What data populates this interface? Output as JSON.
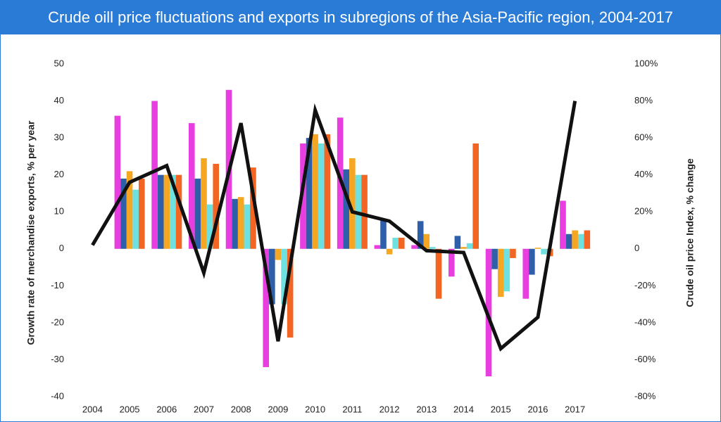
{
  "chart_data": {
    "type": "bar",
    "title": "Crude oill price fluctuations and exports in subregions of the Asia-Pacific region, 2004-2017",
    "y_label": "Growth rate of merchandise exports, % per year",
    "y2_label": "Crude oil price Index, % change",
    "categories": [
      "2004",
      "2005",
      "2006",
      "2007",
      "2008",
      "2009",
      "2010",
      "2011",
      "2012",
      "2013",
      "2014",
      "2015",
      "2016",
      "2017"
    ],
    "ylim": [
      -40,
      50
    ],
    "yticks": [
      -40,
      -30,
      -20,
      -10,
      0,
      10,
      20,
      30,
      40,
      50
    ],
    "y2lim": [
      -80,
      100
    ],
    "y2ticks": [
      {
        "value": -80,
        "label": "-80%"
      },
      {
        "value": -60,
        "label": "-60%"
      },
      {
        "value": -40,
        "label": "-40%"
      },
      {
        "value": -20,
        "label": "-20%"
      },
      {
        "value": 0,
        "label": "0"
      },
      {
        "value": 20,
        "label": "20%"
      },
      {
        "value": 40,
        "label": "40%"
      },
      {
        "value": 60,
        "label": "60%"
      },
      {
        "value": 80,
        "label": "80%"
      },
      {
        "value": 100,
        "label": "100%"
      }
    ],
    "series": [
      {
        "color": "#e83ee0",
        "values": [
          null,
          36,
          40,
          34,
          43,
          -32,
          28.5,
          35.5,
          1,
          1,
          -7.5,
          -34.5,
          -13.5,
          13
        ]
      },
      {
        "color": "#2e5fa8",
        "values": [
          null,
          19,
          20,
          19,
          13.5,
          -15,
          30,
          21.5,
          8,
          7.5,
          3.5,
          -5.5,
          -7,
          4
        ]
      },
      {
        "color": "#f5a623",
        "values": [
          null,
          21,
          20,
          24.5,
          14,
          -3,
          31,
          24.5,
          -1.5,
          4,
          0.5,
          -13,
          0.3,
          5
        ]
      },
      {
        "color": "#6fe0e0",
        "values": [
          null,
          16,
          20,
          12,
          12,
          -15,
          28.5,
          20,
          3,
          0.5,
          1.5,
          -11.5,
          -1.5,
          4
        ]
      },
      {
        "color": "#f26522",
        "values": [
          null,
          19,
          20,
          23,
          22,
          -24,
          31,
          20,
          3,
          -13.5,
          28.5,
          -2.5,
          -2,
          5
        ]
      },
      {
        "type": "line",
        "axis": "y2",
        "color": "#111111",
        "values": [
          2,
          36,
          45,
          -13,
          68,
          -50,
          75,
          20,
          15,
          -1,
          -2,
          -54,
          -37,
          80
        ]
      }
    ]
  }
}
